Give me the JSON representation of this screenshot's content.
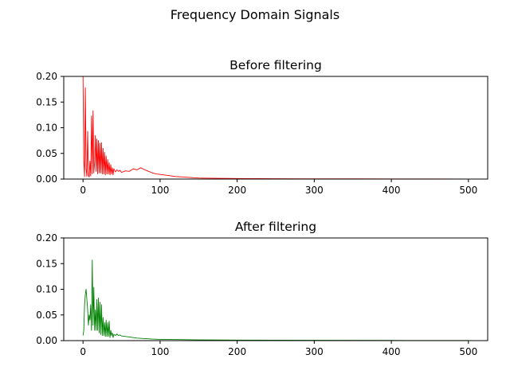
{
  "figure": {
    "suptitle": "Frequency Domain Signals"
  },
  "chart_data": [
    {
      "type": "line",
      "title": "Before filtering",
      "xlabel": "",
      "ylabel": "",
      "xlim": [
        -25,
        525
      ],
      "ylim": [
        0,
        0.2
      ],
      "xticks": [
        0,
        100,
        200,
        300,
        400,
        500
      ],
      "xtick_labels": [
        "0",
        "100",
        "200",
        "300",
        "400",
        "500"
      ],
      "yticks": [
        0,
        0.05,
        0.1,
        0.15,
        0.2
      ],
      "ytick_labels": [
        "0.00",
        "0.05",
        "0.10",
        "0.15",
        "0.20"
      ],
      "grid": false,
      "series": [
        {
          "color": "#ff0000",
          "x": [
            0,
            1,
            2,
            3,
            4,
            5,
            6,
            7,
            8,
            9,
            10,
            11,
            12,
            13,
            14,
            15,
            16,
            17,
            18,
            19,
            20,
            21,
            22,
            23,
            24,
            25,
            26,
            27,
            28,
            29,
            30,
            31,
            32,
            33,
            34,
            35,
            36,
            37,
            38,
            39,
            40,
            42,
            44,
            46,
            48,
            50,
            55,
            60,
            65,
            70,
            75,
            80,
            85,
            90,
            95,
            100,
            110,
            120,
            130,
            140,
            150,
            175,
            200,
            250,
            300,
            350,
            400,
            450,
            500
          ],
          "y": [
            0.2,
            0.035,
            0.005,
            0.178,
            0.02,
            0.005,
            0.093,
            0.008,
            0.004,
            0.035,
            0.006,
            0.123,
            0.01,
            0.133,
            0.012,
            0.03,
            0.085,
            0.015,
            0.078,
            0.01,
            0.075,
            0.012,
            0.07,
            0.012,
            0.071,
            0.01,
            0.06,
            0.01,
            0.052,
            0.008,
            0.045,
            0.01,
            0.038,
            0.01,
            0.032,
            0.008,
            0.028,
            0.01,
            0.022,
            0.008,
            0.02,
            0.014,
            0.018,
            0.015,
            0.017,
            0.013,
            0.016,
            0.015,
            0.02,
            0.018,
            0.022,
            0.018,
            0.015,
            0.012,
            0.01,
            0.009,
            0.007,
            0.005,
            0.004,
            0.003,
            0.002,
            0.0015,
            0.001,
            0.0007,
            0.0005,
            0.0004,
            0.0003,
            0.0002,
            0.0001
          ]
        }
      ]
    },
    {
      "type": "line",
      "title": "After filtering",
      "xlabel": "",
      "ylabel": "",
      "xlim": [
        -25,
        525
      ],
      "ylim": [
        0,
        0.2
      ],
      "xticks": [
        0,
        100,
        200,
        300,
        400,
        500
      ],
      "xtick_labels": [
        "0",
        "100",
        "200",
        "300",
        "400",
        "500"
      ],
      "yticks": [
        0,
        0.05,
        0.1,
        0.15,
        0.2
      ],
      "ytick_labels": [
        "0.00",
        "0.05",
        "0.10",
        "0.15",
        "0.20"
      ],
      "grid": false,
      "series": [
        {
          "color": "#008000",
          "x": [
            0,
            1,
            2,
            3,
            4,
            5,
            6,
            7,
            8,
            9,
            10,
            11,
            12,
            13,
            14,
            15,
            16,
            17,
            18,
            19,
            20,
            21,
            22,
            23,
            24,
            25,
            26,
            27,
            28,
            29,
            30,
            31,
            32,
            33,
            34,
            35,
            36,
            37,
            38,
            39,
            40,
            42,
            44,
            46,
            48,
            50,
            55,
            60,
            70,
            80,
            90,
            100,
            125,
            150,
            200,
            250,
            300,
            400,
            500
          ],
          "y": [
            0.01,
            0.02,
            0.07,
            0.09,
            0.1,
            0.08,
            0.06,
            0.03,
            0.05,
            0.04,
            0.07,
            0.02,
            0.157,
            0.03,
            0.104,
            0.02,
            0.06,
            0.02,
            0.08,
            0.02,
            0.083,
            0.015,
            0.075,
            0.012,
            0.07,
            0.01,
            0.045,
            0.01,
            0.035,
            0.008,
            0.04,
            0.008,
            0.035,
            0.008,
            0.038,
            0.006,
            0.02,
            0.01,
            0.015,
            0.006,
            0.012,
            0.01,
            0.013,
            0.01,
            0.011,
            0.009,
            0.008,
            0.007,
            0.005,
            0.004,
            0.003,
            0.0025,
            0.002,
            0.0015,
            0.001,
            0.0008,
            0.0006,
            0.0004,
            0.0002
          ]
        }
      ]
    }
  ]
}
